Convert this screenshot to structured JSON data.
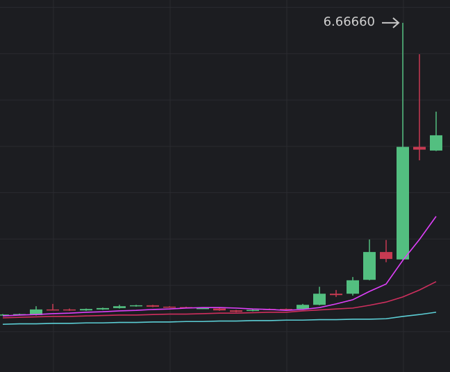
{
  "chart_data": {
    "type": "candlestick",
    "open": [
      0.37,
      0.36,
      0.36,
      0.48,
      0.48,
      0.46,
      0.48,
      0.51,
      0.55,
      0.57,
      0.54,
      0.53,
      0.5,
      0.5,
      0.46,
      0.45,
      0.49,
      0.49,
      0.49,
      0.58,
      0.82,
      0.82,
      1.12,
      1.72,
      1.56,
      3.99,
      3.91
    ],
    "high": [
      0.38,
      0.39,
      0.55,
      0.6,
      0.5,
      0.5,
      0.52,
      0.58,
      0.58,
      0.58,
      0.55,
      0.54,
      0.53,
      0.51,
      0.47,
      0.48,
      0.5,
      0.5,
      0.6,
      0.97,
      0.9,
      1.18,
      1.99,
      1.98,
      6.6666,
      5.99,
      4.75
    ],
    "low": [
      0.36,
      0.35,
      0.35,
      0.46,
      0.45,
      0.45,
      0.47,
      0.5,
      0.54,
      0.53,
      0.52,
      0.51,
      0.49,
      0.45,
      0.42,
      0.44,
      0.47,
      0.47,
      0.48,
      0.57,
      0.75,
      0.78,
      1.11,
      1.5,
      1.55,
      3.7,
      3.9
    ],
    "close": [
      0.37,
      0.38,
      0.48,
      0.46,
      0.46,
      0.49,
      0.51,
      0.55,
      0.57,
      0.54,
      0.53,
      0.52,
      0.51,
      0.46,
      0.43,
      0.47,
      0.48,
      0.48,
      0.58,
      0.82,
      0.79,
      1.11,
      1.72,
      1.57,
      3.99,
      3.93,
      4.24
    ],
    "up_color": "#53bf80",
    "down_color": "#c83a52",
    "overlays": [
      {
        "color": "#e040fb",
        "values": [
          0.34,
          0.36,
          0.37,
          0.39,
          0.4,
          0.42,
          0.43,
          0.45,
          0.46,
          0.48,
          0.49,
          0.51,
          0.52,
          0.52,
          0.51,
          0.49,
          0.48,
          0.46,
          0.48,
          0.52,
          0.6,
          0.69,
          0.87,
          1.03,
          1.54,
          1.99,
          2.49
        ]
      },
      {
        "color": "#cf2f5e",
        "values": [
          0.3,
          0.31,
          0.32,
          0.33,
          0.33,
          0.34,
          0.35,
          0.36,
          0.36,
          0.37,
          0.38,
          0.38,
          0.39,
          0.4,
          0.4,
          0.41,
          0.42,
          0.42,
          0.45,
          0.47,
          0.49,
          0.51,
          0.57,
          0.64,
          0.75,
          0.9,
          1.08
        ]
      },
      {
        "color": "#5ccfd6",
        "values": [
          0.16,
          0.17,
          0.17,
          0.18,
          0.18,
          0.19,
          0.19,
          0.2,
          0.2,
          0.21,
          0.21,
          0.22,
          0.22,
          0.23,
          0.23,
          0.24,
          0.24,
          0.25,
          0.25,
          0.26,
          0.26,
          0.27,
          0.27,
          0.28,
          0.33,
          0.37,
          0.42
        ]
      }
    ],
    "annotation": "6.66660",
    "ylim": [
      -0.87,
      7.16
    ],
    "yticks": [
      0,
      1,
      2,
      3,
      4,
      5,
      6,
      7
    ],
    "grid": true
  }
}
